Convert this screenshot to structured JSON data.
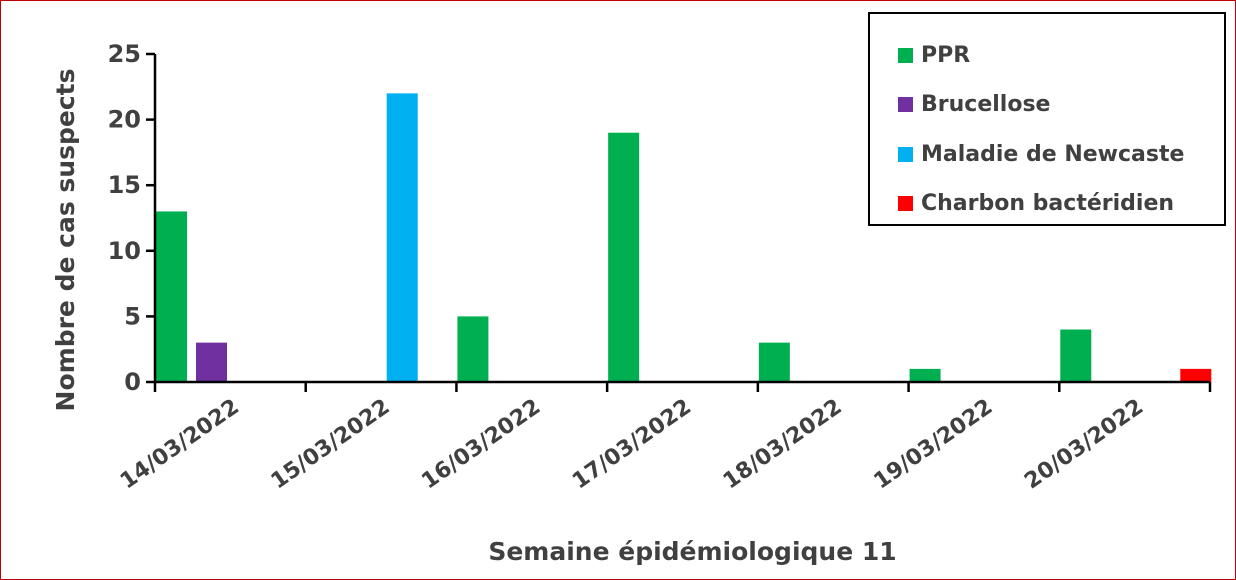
{
  "chart_data": {
    "type": "bar",
    "title": "",
    "xlabel": "Semaine épidémiologique 11",
    "ylabel": "Nombre de cas suspects",
    "ylim": [
      0,
      25
    ],
    "yticks": [
      "0",
      "5",
      "10",
      "15",
      "20",
      "25"
    ],
    "grid": false,
    "legend_position": "top-right",
    "categories": [
      "14/03/2022",
      "15/03/2022",
      "16/03/2022",
      "17/03/2022",
      "18/03/2022",
      "19/03/2022",
      "20/03/2022"
    ],
    "series": [
      {
        "name": "PPR",
        "color": "#00b050",
        "values": [
          13,
          0,
          5,
          19,
          3,
          1,
          4
        ]
      },
      {
        "name": "Brucellose",
        "color": "#7030a0",
        "values": [
          3,
          0,
          0,
          0,
          0,
          0,
          0
        ]
      },
      {
        "name": "Maladie de Newcaste",
        "color": "#00b0f0",
        "values": [
          0,
          22,
          0,
          0,
          0,
          0,
          0
        ]
      },
      {
        "name": "Charbon bactéridien",
        "color": "#ff0000",
        "values": [
          0,
          0,
          0,
          0,
          0,
          0,
          1
        ]
      }
    ]
  }
}
